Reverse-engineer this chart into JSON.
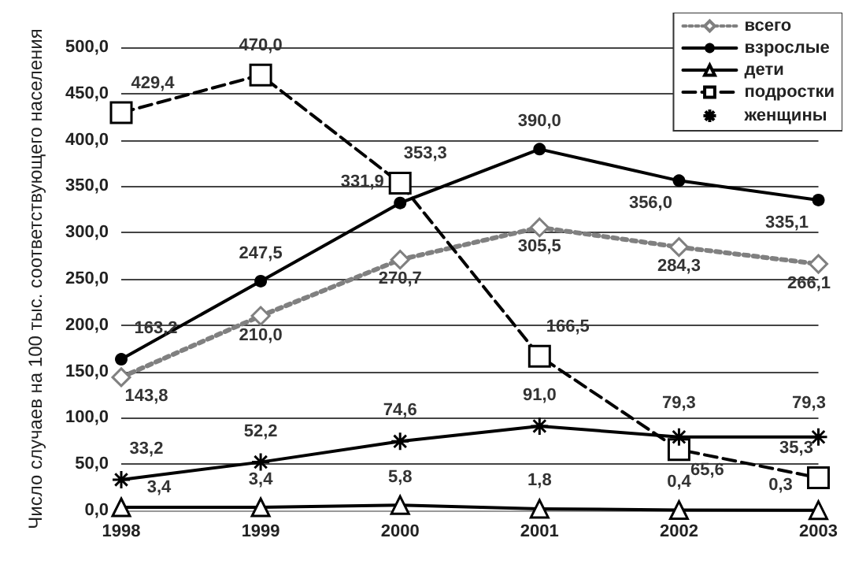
{
  "chart_data": {
    "type": "line",
    "ylabel": "Число случаев на 100 тыс. соответствующего населения",
    "categories": [
      "1998",
      "1999",
      "2000",
      "2001",
      "2002",
      "2003"
    ],
    "series": [
      {
        "name": "всего",
        "color": "#808080",
        "marker": "diamond",
        "line_style": "dotted",
        "values": [
          143.8,
          210.0,
          270.7,
          305.5,
          284.3,
          266.1
        ],
        "value_labels": [
          "143,8",
          "210,0",
          "270,7",
          "305,5",
          "284,3",
          "266,1"
        ]
      },
      {
        "name": "взрослые",
        "color": "#000000",
        "marker": "circle",
        "line_style": "solid",
        "values": [
          163.2,
          247.5,
          331.9,
          390.0,
          356.0,
          335.1
        ],
        "value_labels": [
          "163,2",
          "247,5",
          "331,9",
          "390,0",
          "356,0",
          "335,1"
        ]
      },
      {
        "name": "дети",
        "color": "#000000",
        "marker": "triangle",
        "line_style": "solid",
        "values": [
          3.4,
          3.4,
          5.8,
          1.8,
          0.4,
          0.3
        ],
        "value_labels": [
          "3,4",
          "3,4",
          "5,8",
          "1,8",
          "0,4",
          "0,3"
        ]
      },
      {
        "name": "подростки",
        "color": "#000000",
        "marker": "square",
        "line_style": "dashed",
        "values": [
          429.4,
          470.0,
          353.3,
          166.5,
          65.6,
          35.3
        ],
        "value_labels": [
          "429,4",
          "470,0",
          "353,3",
          "166,5",
          "65,6",
          "35,3"
        ]
      },
      {
        "name": "женщины",
        "color": "#000000",
        "marker": "cross",
        "line_style": "solid",
        "values": [
          33.2,
          52.2,
          74.6,
          91.0,
          79.3,
          79.3
        ],
        "value_labels": [
          "33,2",
          "52,2",
          "74,6",
          "91,0",
          "79,3",
          "79,3"
        ]
      }
    ],
    "ylim": [
      0,
      500
    ],
    "yticks": [
      {
        "value": 0,
        "label": "0,0"
      },
      {
        "value": 50,
        "label": "50,0"
      },
      {
        "value": 100,
        "label": "100,0"
      },
      {
        "value": 150,
        "label": "150,0"
      },
      {
        "value": 200,
        "label": "200,0"
      },
      {
        "value": 250,
        "label": "250,0"
      },
      {
        "value": 300,
        "label": "300,0"
      },
      {
        "value": 350,
        "label": "350,0"
      },
      {
        "value": 400,
        "label": "400,0"
      },
      {
        "value": 450,
        "label": "450,0"
      },
      {
        "value": 500,
        "label": "500,0"
      }
    ],
    "grid": "y",
    "legend": "top right"
  }
}
